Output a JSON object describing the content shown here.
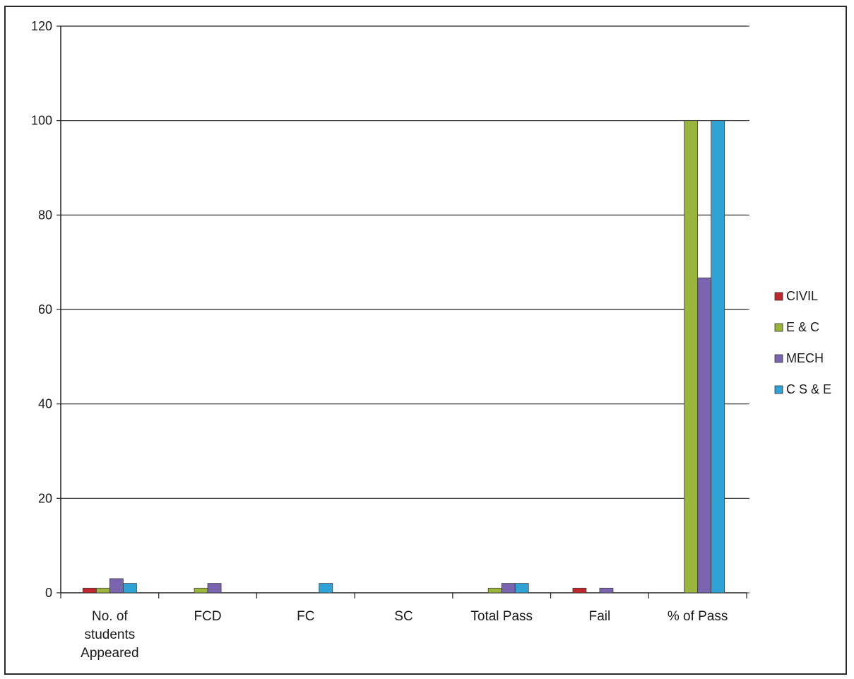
{
  "chart_data": {
    "type": "bar",
    "categories": [
      [
        "No. of",
        "students",
        "Appeared"
      ],
      [
        "FCD"
      ],
      [
        "FC"
      ],
      [
        "SC"
      ],
      [
        "Total Pass"
      ],
      [
        "Fail"
      ],
      [
        "% of Pass"
      ]
    ],
    "series": [
      {
        "name": "CIVIL",
        "color": "#c0272d",
        "values": [
          1,
          0,
          0,
          0,
          0,
          1,
          0
        ]
      },
      {
        "name": "E & C",
        "color": "#9bb53c",
        "values": [
          1,
          1,
          0,
          0,
          1,
          0,
          100
        ]
      },
      {
        "name": "MECH",
        "color": "#7a64b0",
        "values": [
          3,
          2,
          0,
          0,
          2,
          1,
          66.7
        ]
      },
      {
        "name": "C S & E",
        "color": "#2fa3d6",
        "values": [
          2,
          0,
          2,
          0,
          2,
          0,
          100
        ]
      }
    ],
    "ylim": [
      0,
      120
    ],
    "yticks": [
      0,
      20,
      40,
      60,
      80,
      100,
      120
    ],
    "grid": true,
    "legend_position": "right"
  }
}
